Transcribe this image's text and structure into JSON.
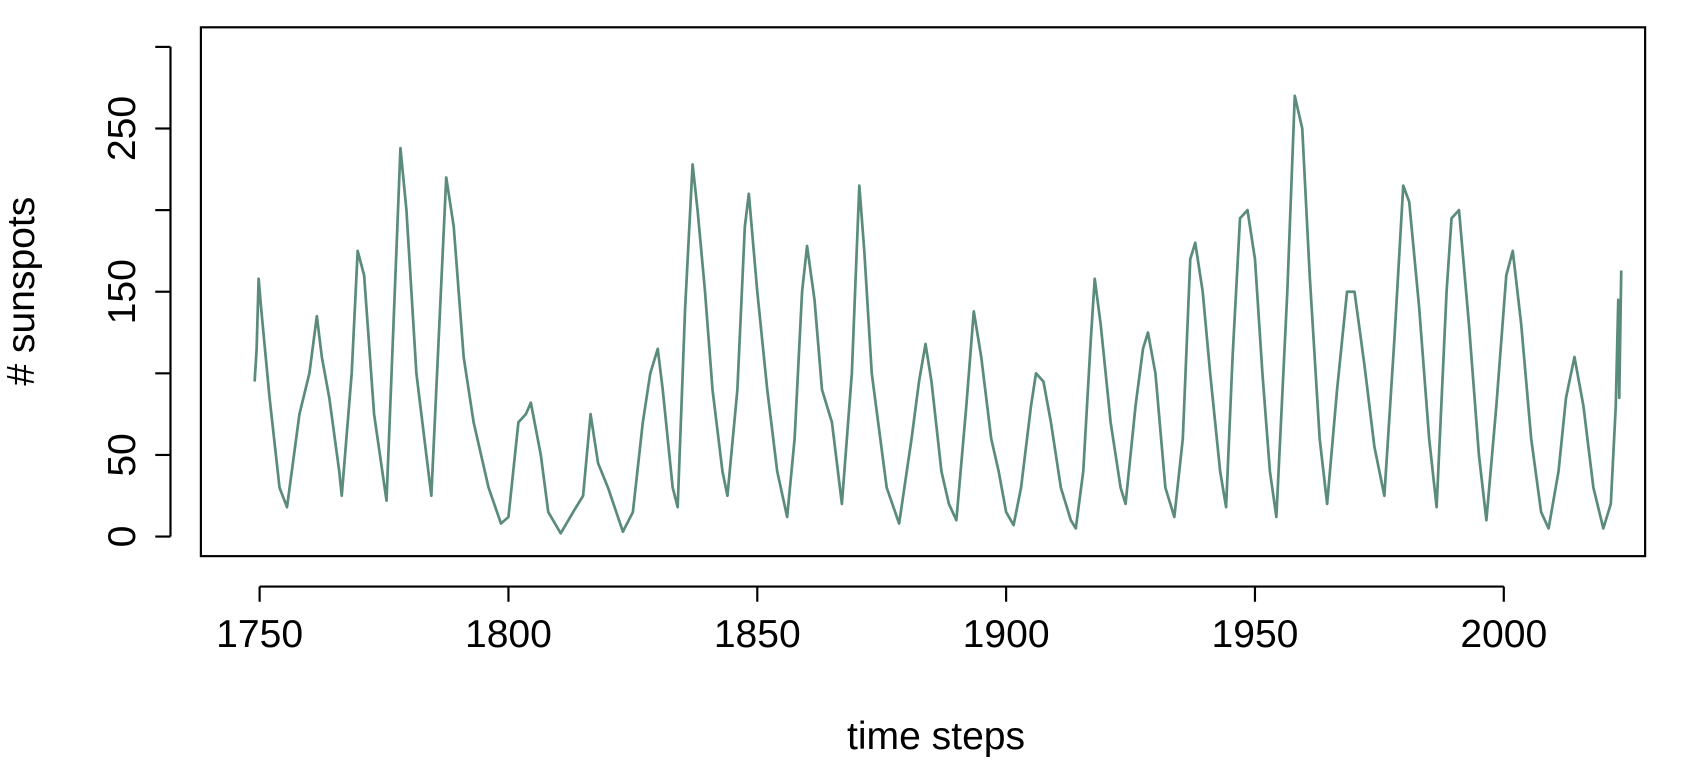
{
  "chart_data": {
    "type": "line",
    "xlabel": "time steps",
    "ylabel": "# sunspots",
    "xlim": [
      1738.2,
      2028.4
    ],
    "ylim": [
      -12,
      312
    ],
    "xticks": [
      1750,
      1800,
      1850,
      1900,
      1950,
      2000
    ],
    "yticks": [
      0,
      50,
      {
        "value": 100,
        "label": null
      },
      150,
      {
        "value": 200,
        "label": null
      },
      250,
      {
        "value": 300,
        "label": null
      }
    ],
    "color": "#5b8c7a",
    "x": [
      1749,
      1749.4,
      1749.8,
      1750.3,
      1752,
      1754,
      1755.5,
      1758,
      1760,
      1761.5,
      1762.5,
      1764,
      1766,
      1766.5,
      1768.5,
      1769.7,
      1771,
      1773,
      1775.5,
      1778.3,
      1779.5,
      1781.5,
      1784.5,
      1787.5,
      1789,
      1791,
      1793,
      1796,
      1798.5,
      1800,
      1802,
      1803.5,
      1804.5,
      1806.5,
      1808,
      1810.5,
      1813,
      1815,
      1816.5,
      1818,
      1820,
      1823,
      1825,
      1827,
      1828.5,
      1830,
      1831,
      1833,
      1834,
      1835.5,
      1837,
      1838,
      1839.5,
      1841,
      1843,
      1844,
      1846,
      1847.5,
      1848.3,
      1850,
      1852,
      1854,
      1856,
      1857.5,
      1859,
      1860,
      1861.5,
      1863,
      1865,
      1867,
      1869,
      1870.5,
      1871.5,
      1873,
      1876,
      1878.5,
      1881,
      1882.5,
      1883.8,
      1885,
      1887,
      1888.5,
      1890,
      1892,
      1893.5,
      1895,
      1897,
      1898.5,
      1900,
      1901.5,
      1903,
      1905,
      1906,
      1907.5,
      1909,
      1911,
      1913,
      1914,
      1915.5,
      1917,
      1917.8,
      1919,
      1921,
      1923,
      1924,
      1926,
      1927.5,
      1928.5,
      1930,
      1932,
      1933.8,
      1935.5,
      1937,
      1938,
      1939.5,
      1941,
      1943,
      1944.2,
      1945.5,
      1947,
      1948.5,
      1950,
      1951.5,
      1953,
      1954.3,
      1956.5,
      1958,
      1959.5,
      1961,
      1963,
      1964.5,
      1966.5,
      1968.5,
      1970,
      1972,
      1974,
      1976,
      1978,
      1979.8,
      1981,
      1983,
      1985,
      1986.5,
      1988.5,
      1989.5,
      1991,
      1993,
      1995,
      1996.5,
      1998.5,
      2000.5,
      2001.8,
      2003.5,
      2005.5,
      2007.5,
      2009,
      2011,
      2012.5,
      2014.2,
      2016,
      2018,
      2020,
      2021.5,
      2022.5,
      2023,
      2023.2,
      2023.6
    ],
    "values": [
      95,
      115,
      158,
      140,
      85,
      30,
      18,
      75,
      100,
      135,
      110,
      85,
      40,
      25,
      100,
      175,
      160,
      75,
      22,
      238,
      200,
      100,
      25,
      220,
      190,
      110,
      70,
      30,
      8,
      12,
      70,
      75,
      82,
      50,
      15,
      2,
      15,
      25,
      75,
      45,
      30,
      3,
      15,
      70,
      100,
      115,
      90,
      30,
      18,
      140,
      228,
      200,
      150,
      90,
      40,
      25,
      90,
      190,
      210,
      150,
      90,
      40,
      12,
      60,
      150,
      178,
      145,
      90,
      70,
      20,
      100,
      215,
      175,
      100,
      30,
      8,
      60,
      95,
      118,
      95,
      40,
      20,
      10,
      80,
      138,
      110,
      60,
      40,
      15,
      7,
      30,
      80,
      100,
      95,
      70,
      30,
      10,
      5,
      40,
      120,
      158,
      130,
      70,
      30,
      20,
      80,
      115,
      125,
      100,
      30,
      12,
      60,
      170,
      180,
      150,
      100,
      40,
      18,
      110,
      195,
      200,
      170,
      100,
      40,
      12,
      150,
      270,
      250,
      160,
      60,
      20,
      90,
      150,
      150,
      105,
      55,
      25,
      120,
      215,
      205,
      140,
      60,
      18,
      150,
      195,
      200,
      130,
      50,
      10,
      80,
      160,
      175,
      130,
      60,
      15,
      5,
      40,
      85,
      110,
      80,
      30,
      5,
      20,
      80,
      145,
      85,
      163
    ]
  }
}
